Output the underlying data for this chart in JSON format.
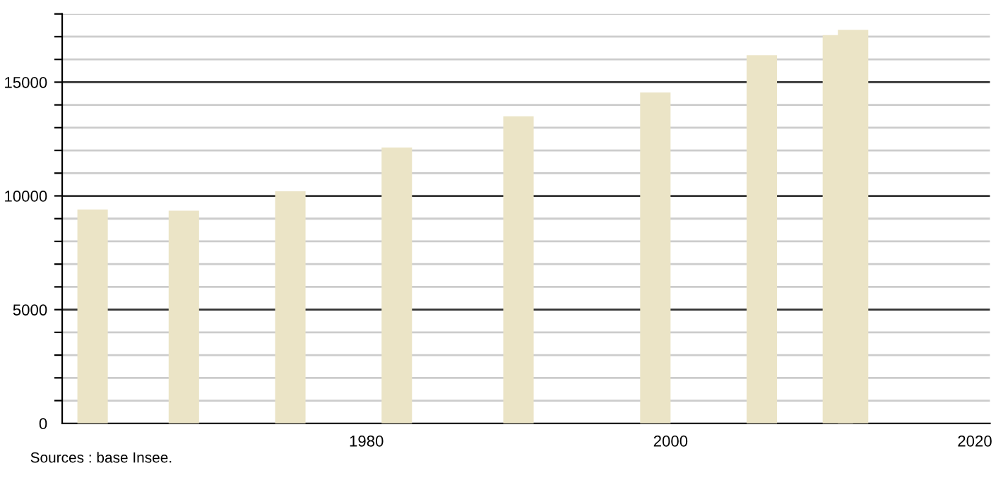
{
  "chart_data": {
    "type": "bar",
    "x": [
      "1962",
      "1968",
      "1975",
      "1982",
      "1990",
      "1999",
      "2006",
      "2011",
      "2012"
    ],
    "values": [
      9400,
      9350,
      10200,
      12130,
      13500,
      14550,
      16180,
      17070,
      17300
    ],
    "color": "#ebe4c6",
    "xlim": [
      "1960",
      "2021"
    ],
    "xticks": [
      "1980",
      "2000",
      "2020"
    ],
    "ylim": [
      0,
      18000
    ],
    "yticks": [
      0,
      {
        "value": 1000,
        "label": null
      },
      {
        "value": 2000,
        "label": null
      },
      {
        "value": 3000,
        "label": null
      },
      {
        "value": 4000,
        "label": null
      },
      5000,
      {
        "value": 6000,
        "label": null
      },
      {
        "value": 7000,
        "label": null
      },
      {
        "value": 8000,
        "label": null
      },
      {
        "value": 9000,
        "label": null
      },
      10000,
      {
        "value": 11000,
        "label": null
      },
      {
        "value": 12000,
        "label": null
      },
      {
        "value": 13000,
        "label": null
      },
      {
        "value": 14000,
        "label": null
      },
      15000,
      {
        "value": 16000,
        "label": null
      },
      {
        "value": 17000,
        "label": null
      },
      {
        "value": 18000,
        "label": null
      }
    ],
    "grid": "y",
    "annotations": [
      "Sources : base Insee."
    ]
  }
}
